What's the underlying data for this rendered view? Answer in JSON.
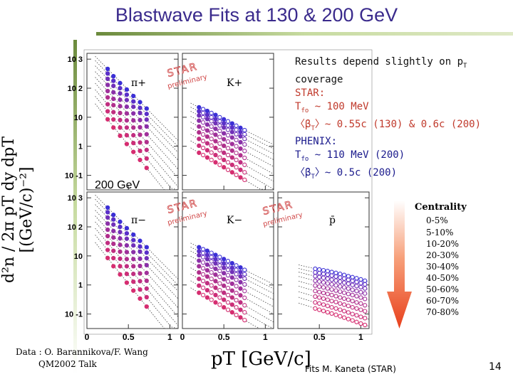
{
  "slide": {
    "title": "Blastwave Fits at 130 & 200 GeV",
    "page_number": "14",
    "footer": "Fits M. Kaneta (STAR)",
    "credit_line1": "Data : O. Barannikova/F. Wang",
    "credit_line2": "QM2002 Talk"
  },
  "note": {
    "line1_pre": "Results depend slightly on p",
    "line1_sub": "T",
    "line2": "coverage",
    "star_head": "STAR:",
    "star_t_pre": "T",
    "star_t_sub": "fo",
    "star_t_val": " ~ 100 MeV",
    "star_b_pre": "〈β",
    "star_b_sub": "T",
    "star_b_val": "〉~ 0.55c (130) & 0.6c (200)",
    "ph_head": "PHENIX:",
    "ph_t_pre": "T",
    "ph_t_sub": "fo",
    "ph_t_val": " ~ 110 MeV (200)",
    "ph_b_pre": "〈β",
    "ph_b_sub": "T",
    "ph_b_val": "〉~ 0.5c (200)"
  },
  "energy_label": "200 GeV",
  "y_axis_label": "d²n / 2π pT dy dpT [(GeV/c)⁻²]",
  "x_axis_label": "pT [GeV/c]",
  "watermark": {
    "line1": "STAR",
    "line2": "preliminary"
  },
  "centrality": {
    "title": "Centrality",
    "bins": [
      "0-5%",
      "5-10%",
      "10-20%",
      "20-30%",
      "30-40%",
      "40-50%",
      "50-60%",
      "60-70%",
      "70-80%"
    ]
  },
  "colors": {
    "title": "#3a2a8c",
    "star_text": "#c0392b",
    "phenix_text": "#1a1a8c",
    "arrow": "#e8401c"
  },
  "chart_data": [
    {
      "type": "scatter",
      "panel": "pi+",
      "label": "π+",
      "row": 0,
      "col": 0,
      "ylim_log10": [
        -1.5,
        3.2
      ],
      "xlim": [
        0,
        1.1
      ],
      "y_ticks": [
        "10 3",
        "10 2",
        "10",
        "1",
        "10 -1"
      ],
      "x": [
        0.25,
        0.32,
        0.4,
        0.48,
        0.56,
        0.64,
        0.72
      ],
      "series": [
        {
          "name": "0-5%",
          "values": [
            460.0,
            260.0,
            150.0,
            90.0,
            54.0,
            33.0,
            20.0
          ]
        },
        {
          "name": "5-10%",
          "values": [
            320.0,
            180.0,
            100.0,
            60.0,
            35.0,
            21.0,
            13.0
          ]
        },
        {
          "name": "10-20%",
          "values": [
            210.0,
            120.0,
            66.0,
            39.0,
            23.0,
            14.0,
            8.3
          ]
        },
        {
          "name": "20-30%",
          "values": [
            130.0,
            72.0,
            40.0,
            23.0,
            13.5,
            8.0,
            4.8
          ]
        },
        {
          "name": "30-40%",
          "values": [
            80.0,
            43.0,
            24.0,
            13.5,
            7.8,
            4.5,
            2.6
          ]
        },
        {
          "name": "40-50%",
          "values": [
            48.0,
            26.0,
            14.0,
            7.8,
            4.4,
            2.5,
            1.4
          ]
        },
        {
          "name": "50-60%",
          "values": [
            28.0,
            15.0,
            8.0,
            4.4,
            2.4,
            1.35,
            0.75
          ]
        },
        {
          "name": "60-70%",
          "values": [
            16.0,
            8.4,
            4.4,
            2.4,
            1.3,
            0.7,
            0.38
          ]
        },
        {
          "name": "70-80%",
          "values": [
            8.5,
            4.4,
            2.3,
            1.2,
            0.64,
            0.34,
            0.18
          ]
        }
      ]
    },
    {
      "type": "scatter",
      "panel": "K+",
      "label": "K+",
      "row": 0,
      "col": 1,
      "ylim_log10": [
        -1.5,
        3.2
      ],
      "xlim": [
        0,
        1.1
      ],
      "x": [
        0.2,
        0.25,
        0.3,
        0.35,
        0.4,
        0.45,
        0.5,
        0.55,
        0.6,
        0.65,
        0.7,
        0.75
      ],
      "series": [
        {
          "name": "0-5%",
          "values": [
            22.0,
            19.0,
            16.5,
            14.0,
            12.0,
            10.0,
            8.5,
            7.2,
            6.1,
            5.1,
            4.3,
            3.6
          ]
        },
        {
          "name": "5-10%",
          "values": [
            16.0,
            14.0,
            12.0,
            10.0,
            8.6,
            7.3,
            6.2,
            5.2,
            4.4,
            3.7,
            3.1,
            2.6
          ]
        },
        {
          "name": "10-20%",
          "values": [
            11.5,
            10.0,
            8.6,
            7.3,
            6.2,
            5.2,
            4.4,
            3.7,
            3.1,
            2.6,
            2.2,
            1.8
          ]
        },
        {
          "name": "20-30%",
          "values": [
            7.6,
            6.6,
            5.6,
            4.8,
            4.0,
            3.4,
            2.8,
            2.4,
            2.0,
            1.65,
            1.38,
            1.15
          ]
        },
        {
          "name": "30-40%",
          "values": [
            4.8,
            4.1,
            3.5,
            3.0,
            2.5,
            2.1,
            1.75,
            1.45,
            1.2,
            1.0,
            0.83,
            0.69
          ]
        },
        {
          "name": "40-50%",
          "values": [
            3.0,
            2.55,
            2.15,
            1.8,
            1.5,
            1.25,
            1.04,
            0.86,
            0.71,
            0.59,
            0.49,
            0.4
          ]
        },
        {
          "name": "50-60%",
          "values": [
            1.8,
            1.52,
            1.27,
            1.06,
            0.88,
            0.73,
            0.6,
            0.5,
            0.41,
            0.34,
            0.28,
            0.23
          ]
        },
        {
          "name": "60-70%",
          "values": [
            1.05,
            0.88,
            0.73,
            0.61,
            0.5,
            0.41,
            0.34,
            0.28,
            0.23,
            0.19,
            0.155,
            0.127
          ]
        },
        {
          "name": "70-80%",
          "values": [
            0.6,
            0.5,
            0.41,
            0.34,
            0.28,
            0.23,
            0.19,
            0.155,
            0.127,
            0.104,
            0.085,
            0.07
          ]
        }
      ]
    },
    {
      "type": "scatter",
      "panel": "pi-",
      "label": "π−",
      "row": 1,
      "col": 0,
      "ylim_log10": [
        -1.5,
        3.2
      ],
      "xlim": [
        0,
        1.1
      ],
      "y_ticks": [
        "10 3",
        "10 2",
        "10",
        "1",
        "10 -1"
      ],
      "x_ticks": [
        "0",
        "0.5",
        "1"
      ],
      "x": [
        0.25,
        0.32,
        0.4,
        0.48,
        0.56,
        0.64,
        0.72
      ],
      "series": [
        {
          "name": "0-5%",
          "values": [
            460.0,
            260.0,
            150.0,
            90.0,
            54.0,
            33.0,
            20.0
          ]
        },
        {
          "name": "5-10%",
          "values": [
            320.0,
            180.0,
            100.0,
            60.0,
            35.0,
            21.0,
            13.0
          ]
        },
        {
          "name": "10-20%",
          "values": [
            210.0,
            120.0,
            66.0,
            39.0,
            23.0,
            14.0,
            8.3
          ]
        },
        {
          "name": "20-30%",
          "values": [
            130.0,
            72.0,
            40.0,
            23.0,
            13.5,
            8.0,
            4.8
          ]
        },
        {
          "name": "30-40%",
          "values": [
            80.0,
            43.0,
            24.0,
            13.5,
            7.8,
            4.5,
            2.6
          ]
        },
        {
          "name": "40-50%",
          "values": [
            48.0,
            26.0,
            14.0,
            7.8,
            4.4,
            2.5,
            1.4
          ]
        },
        {
          "name": "50-60%",
          "values": [
            28.0,
            15.0,
            8.0,
            4.4,
            2.4,
            1.35,
            0.75
          ]
        },
        {
          "name": "60-70%",
          "values": [
            16.0,
            8.4,
            4.4,
            2.4,
            1.3,
            0.7,
            0.38
          ]
        },
        {
          "name": "70-80%",
          "values": [
            8.5,
            4.4,
            2.3,
            1.2,
            0.64,
            0.34,
            0.18
          ]
        }
      ]
    },
    {
      "type": "scatter",
      "panel": "K-",
      "label": "K−",
      "row": 1,
      "col": 1,
      "ylim_log10": [
        -1.5,
        3.2
      ],
      "xlim": [
        0,
        1.1
      ],
      "x_ticks": [
        "0",
        "0.5",
        "1"
      ],
      "x": [
        0.2,
        0.25,
        0.3,
        0.35,
        0.4,
        0.45,
        0.5,
        0.55,
        0.6,
        0.65,
        0.7,
        0.75
      ],
      "series": [
        {
          "name": "0-5%",
          "values": [
            20.0,
            17.0,
            15.0,
            12.7,
            10.8,
            9.2,
            7.8,
            6.6,
            5.6,
            4.7,
            4.0,
            3.3
          ]
        },
        {
          "name": "5-10%",
          "values": [
            14.5,
            12.5,
            10.7,
            9.1,
            7.7,
            6.5,
            5.5,
            4.7,
            3.9,
            3.3,
            2.8,
            2.35
          ]
        },
        {
          "name": "10-20%",
          "values": [
            10.5,
            9.0,
            7.7,
            6.5,
            5.5,
            4.7,
            3.9,
            3.3,
            2.8,
            2.35,
            1.97,
            1.65
          ]
        },
        {
          "name": "20-30%",
          "values": [
            6.9,
            5.9,
            5.0,
            4.3,
            3.6,
            3.05,
            2.55,
            2.15,
            1.8,
            1.5,
            1.25,
            1.04
          ]
        },
        {
          "name": "30-40%",
          "values": [
            4.4,
            3.75,
            3.2,
            2.7,
            2.25,
            1.9,
            1.58,
            1.32,
            1.1,
            0.91,
            0.75,
            0.62
          ]
        },
        {
          "name": "40-50%",
          "values": [
            2.7,
            2.3,
            1.95,
            1.63,
            1.36,
            1.13,
            0.94,
            0.78,
            0.64,
            0.53,
            0.44,
            0.36
          ]
        },
        {
          "name": "50-60%",
          "values": [
            1.62,
            1.37,
            1.15,
            0.96,
            0.8,
            0.66,
            0.54,
            0.45,
            0.37,
            0.3,
            0.25,
            0.2
          ]
        },
        {
          "name": "60-70%",
          "values": [
            0.95,
            0.8,
            0.66,
            0.55,
            0.45,
            0.37,
            0.31,
            0.25,
            0.21,
            0.17,
            0.14,
            0.114
          ]
        },
        {
          "name": "70-80%",
          "values": [
            0.54,
            0.45,
            0.37,
            0.31,
            0.25,
            0.21,
            0.17,
            0.14,
            0.114,
            0.093,
            0.076,
            0.062
          ]
        }
      ]
    },
    {
      "type": "scatter",
      "panel": "pbar",
      "label": "p̄",
      "row": 1,
      "col": 2,
      "ylim_log10": [
        -1.5,
        3.2
      ],
      "xlim": [
        0,
        1.1
      ],
      "x_ticks": [
        "0.5",
        "1"
      ],
      "x": [
        0.45,
        0.5,
        0.55,
        0.6,
        0.65,
        0.7,
        0.75,
        0.8,
        0.85,
        0.9,
        0.95,
        1.0,
        1.05
      ],
      "series": [
        {
          "name": "0-5%",
          "values": [
            3.6,
            3.4,
            3.2,
            3.0,
            2.8,
            2.6,
            2.4,
            2.2,
            2.0,
            1.85,
            1.7,
            1.55,
            1.4
          ]
        },
        {
          "name": "5-10%",
          "values": [
            2.7,
            2.55,
            2.4,
            2.25,
            2.1,
            1.95,
            1.8,
            1.65,
            1.5,
            1.38,
            1.26,
            1.15,
            1.05
          ]
        },
        {
          "name": "10-20%",
          "values": [
            2.0,
            1.88,
            1.76,
            1.64,
            1.52,
            1.41,
            1.3,
            1.2,
            1.1,
            1.0,
            0.92,
            0.84,
            0.76
          ]
        },
        {
          "name": "20-30%",
          "values": [
            1.4,
            1.31,
            1.22,
            1.13,
            1.05,
            0.97,
            0.89,
            0.82,
            0.75,
            0.68,
            0.62,
            0.56,
            0.51
          ]
        },
        {
          "name": "30-40%",
          "values": [
            0.95,
            0.88,
            0.82,
            0.76,
            0.7,
            0.64,
            0.59,
            0.54,
            0.49,
            0.45,
            0.41,
            0.37,
            0.33
          ]
        },
        {
          "name": "40-50%",
          "values": [
            0.62,
            0.57,
            0.53,
            0.49,
            0.45,
            0.41,
            0.37,
            0.34,
            0.31,
            0.28,
            0.25,
            0.23,
            0.2
          ]
        },
        {
          "name": "50-60%",
          "values": [
            0.4,
            0.37,
            0.34,
            0.31,
            0.28,
            0.26,
            0.23,
            0.21,
            0.19,
            0.17,
            0.155,
            0.14,
            0.125
          ]
        },
        {
          "name": "60-70%",
          "values": [
            0.25,
            0.23,
            0.21,
            0.19,
            0.17,
            0.155,
            0.14,
            0.126,
            0.113,
            0.1,
            0.09,
            0.08,
            0.072
          ]
        },
        {
          "name": "70-80%",
          "values": [
            0.155,
            0.14,
            0.127,
            0.115,
            0.104,
            0.094,
            0.084,
            0.075,
            0.067,
            0.06,
            0.053,
            0.047,
            0.042
          ]
        }
      ]
    }
  ]
}
